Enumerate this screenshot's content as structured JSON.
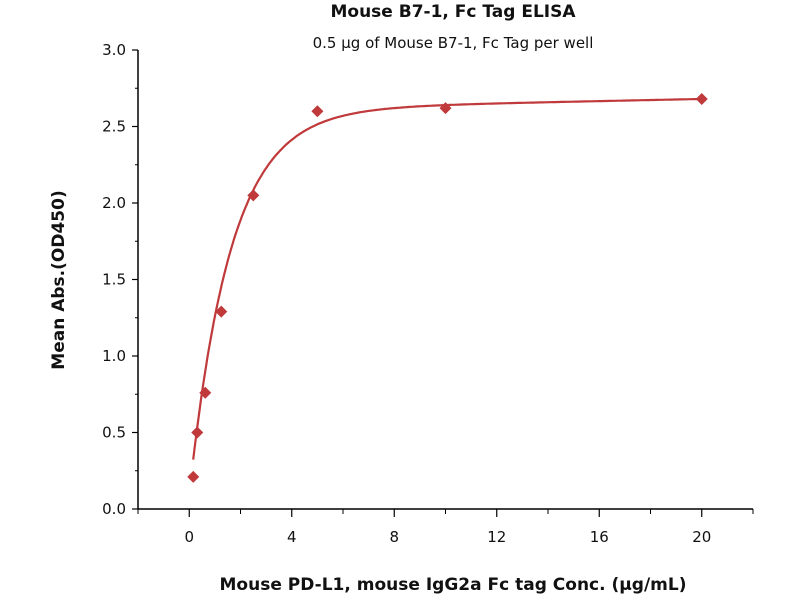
{
  "chart_data": {
    "type": "scatter",
    "title": "Mouse B7-1, Fc Tag ELISA",
    "subtitle": "0.5 µg of Mouse B7-1, Fc Tag per well",
    "xlabel": "Mouse PD-L1, mouse IgG2a Fc tag Conc. (µg/mL)",
    "ylabel": "Mean Abs.(OD450)",
    "xlim": [
      -2,
      22
    ],
    "ylim": [
      0,
      3.0
    ],
    "xticks": [
      "0",
      "4",
      "8",
      "12",
      "16",
      "20"
    ],
    "yticks": [
      "0.0",
      "0.5",
      "1.0",
      "1.5",
      "2.0",
      "2.5",
      "3.0"
    ],
    "grid": false,
    "legend": "none",
    "color": "#c0393b",
    "marker": "diamond",
    "fit_line": "smooth curve",
    "series": [
      {
        "x": [
          0.156,
          0.3125,
          0.625,
          1.25,
          2.5,
          5,
          10,
          20
        ],
        "y": [
          0.21,
          0.5,
          0.76,
          1.29,
          2.05,
          2.6,
          2.62,
          2.68
        ]
      }
    ]
  }
}
